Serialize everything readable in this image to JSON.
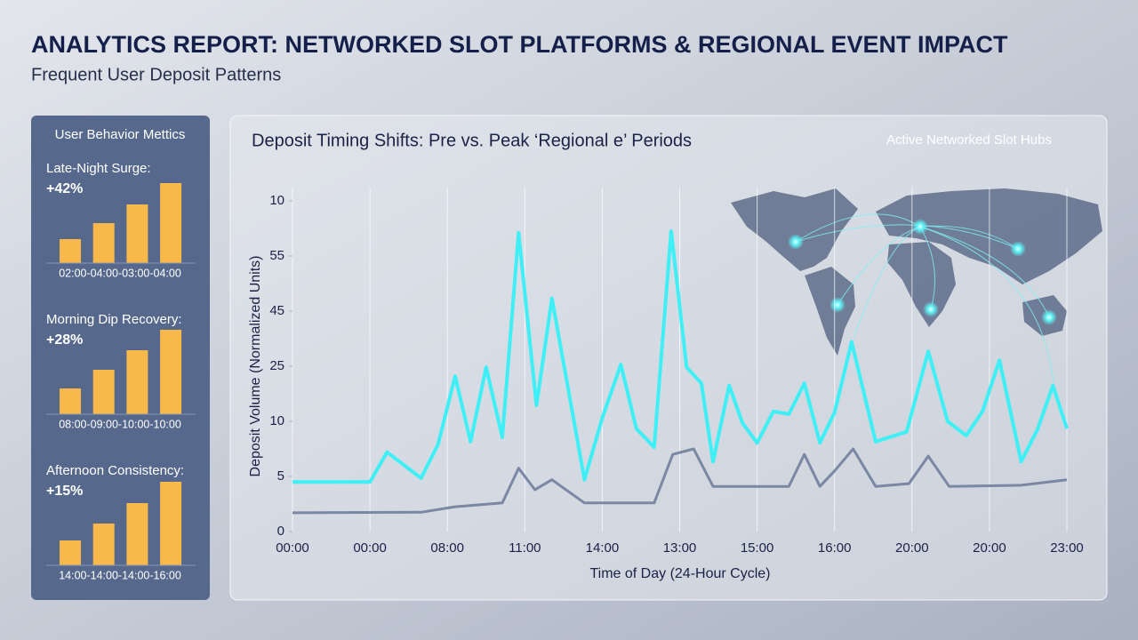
{
  "header": {
    "title": "ANALYTICS REPORT: NETWORKED SLOT PLATFORMS & REGIONAL EVENT IMPACT",
    "subtitle": "Frequent User Deposit Patterns"
  },
  "sidebar": {
    "title": "User Behavior Mettics"
  },
  "map": {
    "title": "Active Networked Slot Hubs"
  },
  "chart_data": [
    {
      "type": "bar",
      "title": "Late-Night Surge:",
      "metric": "+42%",
      "caption": "02:00-04:00-03:00-04:00",
      "values": [
        27,
        45,
        66,
        90
      ],
      "ylim": [
        0,
        100
      ],
      "color": "#f9b84a"
    },
    {
      "type": "bar",
      "title": "Morning Dip Recovery:",
      "metric": "+28%",
      "caption": "08:00-09:00-10:00-10:00",
      "values": [
        29,
        50,
        72,
        95
      ],
      "ylim": [
        0,
        100
      ],
      "color": "#f9b84a"
    },
    {
      "type": "bar",
      "title": "Afternoon Consistency:",
      "metric": "+15%",
      "caption": "14:00-14:00-14:00-16:00",
      "values": [
        28,
        47,
        70,
        94
      ],
      "ylim": [
        0,
        100
      ],
      "color": "#f9b84a"
    },
    {
      "type": "line",
      "title": "Deposit Timing Shifts: Pre vs. Peak ‘Regional e’ Periods",
      "y_label": "Deposit Volume (Normalized Units)",
      "x_label": "Time of Day (24-Hour Cycle)",
      "xlim": [
        0,
        10
      ],
      "xticks": [
        {
          "value": 0,
          "label": "00:00"
        },
        {
          "value": 1,
          "label": "00:00"
        },
        {
          "value": 2,
          "label": "08:00"
        },
        {
          "value": 3,
          "label": "11:00"
        },
        {
          "value": 4,
          "label": "14:00"
        },
        {
          "value": 5,
          "label": "13:00"
        },
        {
          "value": 6,
          "label": "15:00"
        },
        {
          "value": 7,
          "label": "16:00"
        },
        {
          "value": 8,
          "label": "20:00"
        },
        {
          "value": 9,
          "label": "20:00"
        },
        {
          "value": 10,
          "label": "23:00"
        }
      ],
      "ylim": [
        0,
        60
      ],
      "yticks": [
        0,
        {
          "value": 10,
          "label": "5"
        },
        {
          "value": 20,
          "label": "10"
        },
        {
          "value": 30,
          "label": "25"
        },
        {
          "value": 40,
          "label": "45"
        },
        {
          "value": 50,
          "label": "55"
        },
        {
          "value": 60,
          "label": "10"
        }
      ],
      "grid": "x",
      "series": [
        {
          "color": "#3ef0f5",
          "x": [
            0,
            1,
            1.22,
            1.66,
            1.88,
            2.1,
            2.3,
            2.5,
            2.71,
            2.92,
            3.15,
            3.35,
            3.77,
            4.0,
            4.24,
            4.44,
            4.67,
            4.89,
            5.09,
            5.28,
            5.43,
            5.64,
            5.81,
            6.0,
            6.21,
            6.41,
            6.61,
            6.81,
            7.0,
            7.22,
            7.53,
            7.93,
            8.21,
            8.46,
            8.7,
            8.91,
            9.13,
            9.41,
            9.62,
            9.82,
            10.0
          ],
          "values": [
            9.0,
            9.0,
            14.4,
            9.7,
            15.8,
            28.2,
            16.3,
            29.8,
            17.1,
            54.2,
            22.9,
            42.3,
            9.4,
            20.6,
            30.3,
            18.7,
            15.3,
            54.5,
            29.8,
            26.9,
            12.7,
            26.5,
            19.7,
            16.1,
            21.8,
            21.3,
            26.9,
            16.1,
            21.6,
            34.4,
            16.3,
            18.1,
            32.7,
            20.0,
            17.4,
            21.8,
            31.1,
            12.7,
            18.5,
            26.5,
            18.7
          ]
        },
        {
          "color": "#7a88a4",
          "x": [
            0,
            1.66,
            2.1,
            2.71,
            2.92,
            3.13,
            3.35,
            3.77,
            4.67,
            4.91,
            5.18,
            5.43,
            6.41,
            6.61,
            6.81,
            7.0,
            7.24,
            7.53,
            7.96,
            8.21,
            8.48,
            9.41,
            10.0
          ],
          "values": [
            3.4,
            3.5,
            4.5,
            5.2,
            11.5,
            7.6,
            9.4,
            5.2,
            5.2,
            14.0,
            15.0,
            8.2,
            8.2,
            14.0,
            8.2,
            11.0,
            15.0,
            8.2,
            8.7,
            13.7,
            8.2,
            8.4,
            9.4
          ]
        }
      ]
    }
  ]
}
